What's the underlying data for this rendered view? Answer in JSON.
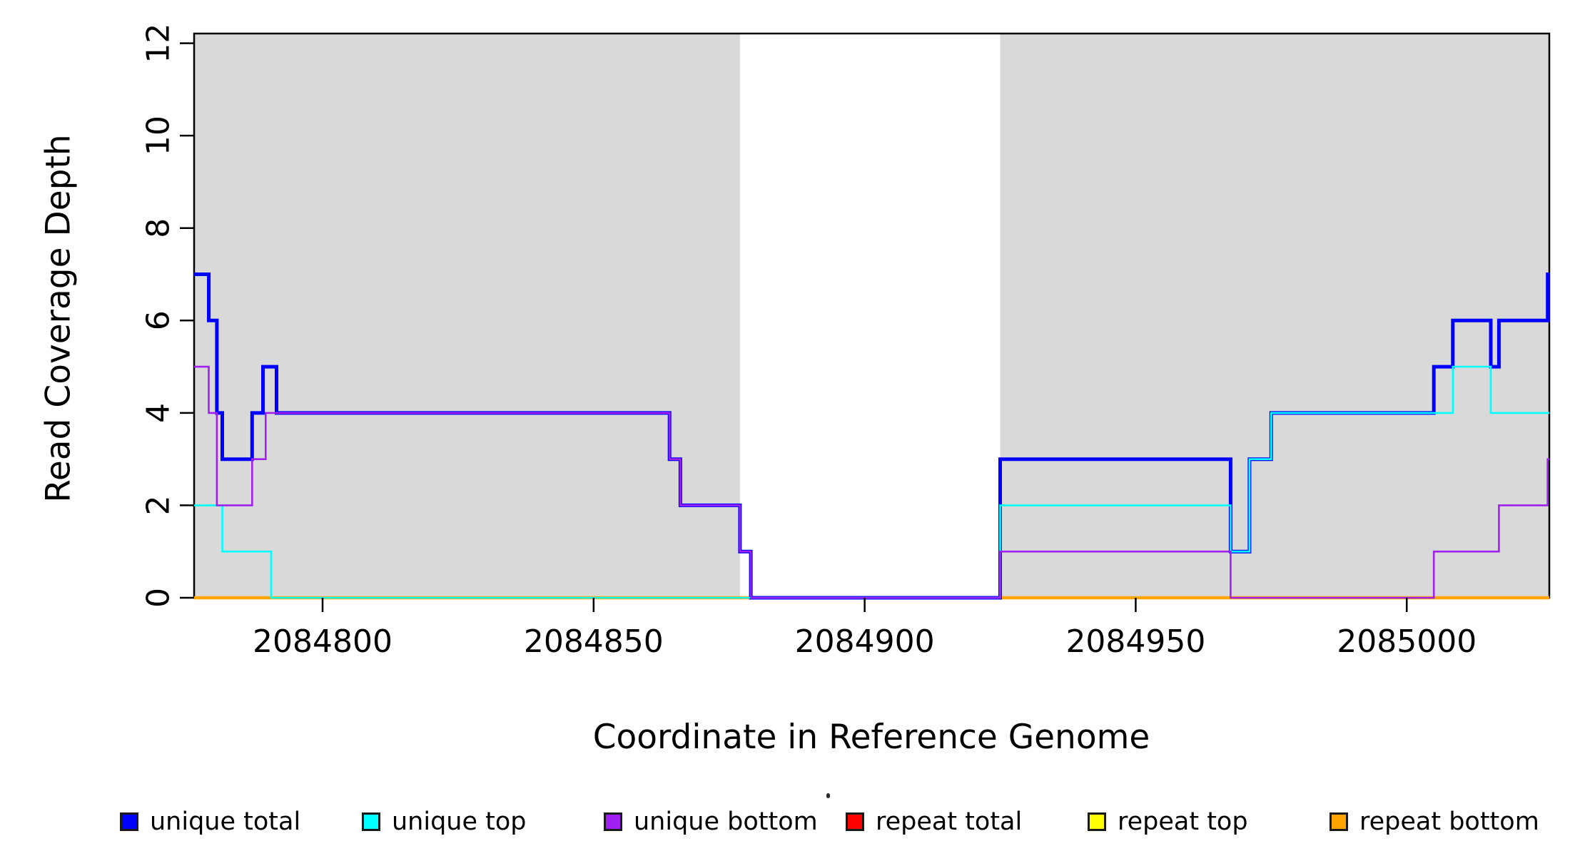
{
  "chart_data": {
    "type": "line",
    "subtype": "step-coverage",
    "title": "",
    "xlabel": "Coordinate in Reference Genome",
    "ylabel": "Read Coverage Depth",
    "xlim": [
      2084776.3,
      2085026.3
    ],
    "ylim": [
      0,
      12.21
    ],
    "grid": false,
    "legend_position": "bottom",
    "shade_color": "#D9D9D9",
    "shaded_regions": [
      {
        "from": 2084776.3,
        "to": 2084877.0
      },
      {
        "from": 2084925.0,
        "to": 2085026.3
      }
    ],
    "xticks": [
      {
        "value": 2084800,
        "label": "2084800"
      },
      {
        "value": 2084850,
        "label": "2084850"
      },
      {
        "value": 2084900,
        "label": "2084900"
      },
      {
        "value": 2084950,
        "label": "2084950"
      },
      {
        "value": 2085000,
        "label": "2085000"
      }
    ],
    "yticks": [
      {
        "value": 0,
        "label": "0"
      },
      {
        "value": 2,
        "label": "2"
      },
      {
        "value": 4,
        "label": "4"
      },
      {
        "value": 6,
        "label": "6"
      },
      {
        "value": 8,
        "label": "8"
      },
      {
        "value": 10,
        "label": "10"
      },
      {
        "value": 12,
        "label": "12"
      }
    ],
    "series": [
      {
        "name": "repeat total",
        "color": "#FF0000",
        "line_width": 4,
        "steps": [
          [
            2084776.3,
            0
          ],
          [
            2085026.3,
            0
          ]
        ]
      },
      {
        "name": "repeat top",
        "color": "#FFFF00",
        "line_width": 3.2,
        "steps": [
          [
            2084776.3,
            0
          ],
          [
            2085026.3,
            0
          ]
        ]
      },
      {
        "name": "repeat bottom",
        "color": "#FFA500",
        "line_width": 4.6,
        "steps": [
          [
            2084776.3,
            0
          ],
          [
            2085026.3,
            0
          ]
        ]
      },
      {
        "name": "unique total",
        "color": "#0000FF",
        "line_width": 5,
        "steps": [
          [
            2084776.3,
            7
          ],
          [
            2084779,
            6
          ],
          [
            2084780.5,
            4
          ],
          [
            2084781.5,
            3
          ],
          [
            2084787,
            4
          ],
          [
            2084789,
            5
          ],
          [
            2084791.5,
            4
          ],
          [
            2084864,
            3
          ],
          [
            2084866,
            2
          ],
          [
            2084877,
            1
          ],
          [
            2084879,
            0
          ],
          [
            2084925,
            3
          ],
          [
            2084967.5,
            1
          ],
          [
            2084971,
            3
          ],
          [
            2084975,
            4
          ],
          [
            2085005,
            5
          ],
          [
            2085008.5,
            6
          ],
          [
            2085015.5,
            5
          ],
          [
            2085017,
            6
          ],
          [
            2085026,
            7
          ],
          [
            2085026.3,
            7
          ]
        ]
      },
      {
        "name": "unique top",
        "color": "#00FFFF",
        "line_width": 2.6,
        "steps": [
          [
            2084776.3,
            2
          ],
          [
            2084781.5,
            1
          ],
          [
            2084790.5,
            0
          ],
          [
            2084925,
            2
          ],
          [
            2084967.5,
            1
          ],
          [
            2084971,
            3
          ],
          [
            2084975,
            4
          ],
          [
            2085008.5,
            5
          ],
          [
            2085015.5,
            4
          ],
          [
            2085026.3,
            4
          ]
        ]
      },
      {
        "name": "unique bottom",
        "color": "#A020F0",
        "line_width": 2.6,
        "steps": [
          [
            2084776.3,
            5
          ],
          [
            2084779,
            4
          ],
          [
            2084780.5,
            2
          ],
          [
            2084787,
            3
          ],
          [
            2084789.5,
            4
          ],
          [
            2084864,
            3
          ],
          [
            2084866,
            2
          ],
          [
            2084877,
            1
          ],
          [
            2084879,
            0
          ],
          [
            2084925,
            1
          ],
          [
            2084967.5,
            0
          ],
          [
            2085005,
            1
          ],
          [
            2085017,
            2
          ],
          [
            2085026,
            3
          ],
          [
            2085026.3,
            3
          ]
        ]
      }
    ],
    "legend": [
      {
        "label": "unique total",
        "color": "#0000FF"
      },
      {
        "label": "unique top",
        "color": "#00FFFF"
      },
      {
        "label": "unique bottom",
        "color": "#A020F0"
      },
      {
        "label": "repeat total",
        "color": "#FF0000"
      },
      {
        "label": "repeat top",
        "color": "#FFFF00"
      },
      {
        "label": "repeat bottom",
        "color": "#FFA500"
      }
    ]
  }
}
